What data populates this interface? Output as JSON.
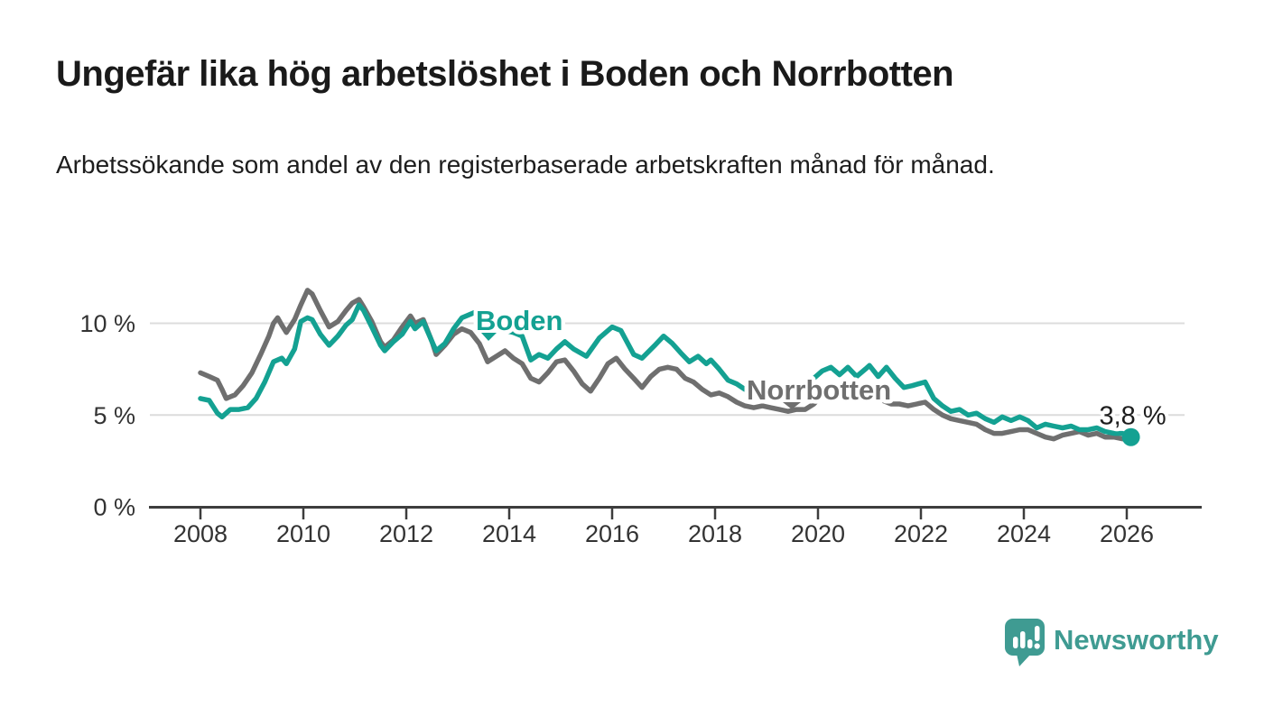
{
  "header": {
    "title": "Ungefär lika hög arbetslöshet i Boden och Norrbotten",
    "subtitle": "Arbetssökande som andel av den registerbaserade arbetskraften månad för månad."
  },
  "footer": {
    "brand": "Newsworthy"
  },
  "colors": {
    "boden": "#14a192",
    "norrbotten": "#6f6f6f",
    "grid": "#dcdcdc",
    "axis": "#3d3d3d",
    "tick_text": "#333333",
    "title_text": "#1a1a1a",
    "brand_teal": "#3f9b92"
  },
  "chart_data": {
    "type": "line",
    "title": "Ungefär lika hög arbetslöshet i Boden och Norrbotten",
    "subtitle": "Arbetssökande som andel av den registerbaserade arbetskraften månad för månad.",
    "xlabel": "",
    "ylabel": "",
    "unit": "%",
    "legend_position": "inline-labels",
    "grid": "horizontal",
    "x_axis": {
      "min": 2007.0,
      "max": 2027.4,
      "ticks": [
        2008,
        2010,
        2012,
        2014,
        2016,
        2018,
        2020,
        2022,
        2024,
        2026
      ]
    },
    "y_axis": {
      "min": 0,
      "max": 12.8,
      "ticks": [
        {
          "value": 0,
          "label": "0 %"
        },
        {
          "value": 5,
          "label": "5 %"
        },
        {
          "value": 10,
          "label": "10 %"
        }
      ],
      "gridlines": [
        5,
        10
      ]
    },
    "annotations": [
      {
        "text": "3,8 %",
        "series": "Boden",
        "position": "end",
        "value": 3.8
      }
    ],
    "series": [
      {
        "name": "Norrbotten",
        "color": "#6f6f6f",
        "points": [
          [
            2008.0,
            7.3
          ],
          [
            2008.17,
            7.1
          ],
          [
            2008.33,
            6.9
          ],
          [
            2008.42,
            6.4
          ],
          [
            2008.5,
            5.9
          ],
          [
            2008.67,
            6.1
          ],
          [
            2008.83,
            6.6
          ],
          [
            2009.0,
            7.3
          ],
          [
            2009.17,
            8.3
          ],
          [
            2009.33,
            9.3
          ],
          [
            2009.42,
            10.0
          ],
          [
            2009.5,
            10.3
          ],
          [
            2009.58,
            9.9
          ],
          [
            2009.67,
            9.5
          ],
          [
            2009.83,
            10.2
          ],
          [
            2009.95,
            11.0
          ],
          [
            2010.08,
            11.8
          ],
          [
            2010.17,
            11.6
          ],
          [
            2010.33,
            10.7
          ],
          [
            2010.5,
            9.8
          ],
          [
            2010.67,
            10.1
          ],
          [
            2010.83,
            10.7
          ],
          [
            2010.95,
            11.1
          ],
          [
            2011.08,
            11.3
          ],
          [
            2011.17,
            10.9
          ],
          [
            2011.33,
            10.1
          ],
          [
            2011.5,
            9.0
          ],
          [
            2011.58,
            8.7
          ],
          [
            2011.75,
            9.1
          ],
          [
            2011.92,
            9.8
          ],
          [
            2012.08,
            10.4
          ],
          [
            2012.17,
            10.0
          ],
          [
            2012.33,
            10.2
          ],
          [
            2012.5,
            9.0
          ],
          [
            2012.58,
            8.3
          ],
          [
            2012.75,
            8.8
          ],
          [
            2012.92,
            9.4
          ],
          [
            2013.08,
            9.7
          ],
          [
            2013.25,
            9.5
          ],
          [
            2013.42,
            8.9
          ],
          [
            2013.58,
            7.9
          ],
          [
            2013.75,
            8.2
          ],
          [
            2013.92,
            8.5
          ],
          [
            2014.08,
            8.1
          ],
          [
            2014.25,
            7.8
          ],
          [
            2014.42,
            7.0
          ],
          [
            2014.58,
            6.8
          ],
          [
            2014.75,
            7.3
          ],
          [
            2014.92,
            7.9
          ],
          [
            2015.08,
            8.0
          ],
          [
            2015.25,
            7.4
          ],
          [
            2015.42,
            6.7
          ],
          [
            2015.58,
            6.3
          ],
          [
            2015.75,
            7.0
          ],
          [
            2015.92,
            7.8
          ],
          [
            2016.08,
            8.1
          ],
          [
            2016.25,
            7.5
          ],
          [
            2016.42,
            7.0
          ],
          [
            2016.58,
            6.5
          ],
          [
            2016.75,
            7.1
          ],
          [
            2016.92,
            7.5
          ],
          [
            2017.08,
            7.6
          ],
          [
            2017.25,
            7.5
          ],
          [
            2017.42,
            7.0
          ],
          [
            2017.58,
            6.8
          ],
          [
            2017.75,
            6.4
          ],
          [
            2017.92,
            6.1
          ],
          [
            2018.08,
            6.2
          ],
          [
            2018.25,
            6.0
          ],
          [
            2018.42,
            5.7
          ],
          [
            2018.58,
            5.5
          ],
          [
            2018.75,
            5.4
          ],
          [
            2018.92,
            5.5
          ],
          [
            2019.08,
            5.4
          ],
          [
            2019.25,
            5.3
          ],
          [
            2019.42,
            5.2
          ],
          [
            2019.58,
            5.3
          ],
          [
            2019.75,
            5.3
          ],
          [
            2019.92,
            5.6
          ],
          [
            2020.08,
            6.1
          ],
          [
            2020.25,
            6.3
          ],
          [
            2020.42,
            6.2
          ],
          [
            2020.58,
            6.1
          ],
          [
            2020.75,
            6.0
          ],
          [
            2020.92,
            6.1
          ],
          [
            2021.08,
            6.0
          ],
          [
            2021.25,
            5.8
          ],
          [
            2021.42,
            5.6
          ],
          [
            2021.58,
            5.6
          ],
          [
            2021.75,
            5.5
          ],
          [
            2021.92,
            5.6
          ],
          [
            2022.08,
            5.7
          ],
          [
            2022.25,
            5.3
          ],
          [
            2022.42,
            5.0
          ],
          [
            2022.58,
            4.8
          ],
          [
            2022.75,
            4.7
          ],
          [
            2022.92,
            4.6
          ],
          [
            2023.08,
            4.5
          ],
          [
            2023.25,
            4.2
          ],
          [
            2023.42,
            4.0
          ],
          [
            2023.58,
            4.0
          ],
          [
            2023.75,
            4.1
          ],
          [
            2023.92,
            4.2
          ],
          [
            2024.08,
            4.2
          ],
          [
            2024.25,
            4.0
          ],
          [
            2024.42,
            3.8
          ],
          [
            2024.58,
            3.7
          ],
          [
            2024.75,
            3.9
          ],
          [
            2024.92,
            4.0
          ],
          [
            2025.08,
            4.1
          ],
          [
            2025.25,
            3.9
          ],
          [
            2025.42,
            4.0
          ],
          [
            2025.58,
            3.8
          ],
          [
            2025.75,
            3.8
          ],
          [
            2025.92,
            3.7
          ],
          [
            2026.08,
            3.8
          ]
        ]
      },
      {
        "name": "Boden",
        "color": "#14a192",
        "end_dot": true,
        "points": [
          [
            2008.0,
            5.9
          ],
          [
            2008.17,
            5.8
          ],
          [
            2008.33,
            5.1
          ],
          [
            2008.42,
            4.9
          ],
          [
            2008.58,
            5.3
          ],
          [
            2008.75,
            5.3
          ],
          [
            2008.92,
            5.4
          ],
          [
            2009.08,
            5.9
          ],
          [
            2009.25,
            6.8
          ],
          [
            2009.42,
            7.9
          ],
          [
            2009.58,
            8.1
          ],
          [
            2009.67,
            7.8
          ],
          [
            2009.83,
            8.6
          ],
          [
            2009.95,
            10.1
          ],
          [
            2010.08,
            10.3
          ],
          [
            2010.17,
            10.2
          ],
          [
            2010.33,
            9.4
          ],
          [
            2010.5,
            8.8
          ],
          [
            2010.67,
            9.3
          ],
          [
            2010.83,
            9.9
          ],
          [
            2010.95,
            10.2
          ],
          [
            2011.08,
            11.0
          ],
          [
            2011.17,
            10.7
          ],
          [
            2011.33,
            9.8
          ],
          [
            2011.5,
            8.8
          ],
          [
            2011.58,
            8.5
          ],
          [
            2011.75,
            9.0
          ],
          [
            2011.92,
            9.4
          ],
          [
            2012.08,
            10.1
          ],
          [
            2012.17,
            9.7
          ],
          [
            2012.33,
            10.1
          ],
          [
            2012.5,
            9.0
          ],
          [
            2012.58,
            8.5
          ],
          [
            2012.75,
            8.9
          ],
          [
            2012.92,
            9.7
          ],
          [
            2013.08,
            10.3
          ],
          [
            2013.25,
            10.5
          ],
          [
            2013.42,
            10.7
          ],
          [
            2013.58,
            10.3
          ],
          [
            2013.75,
            9.9
          ],
          [
            2013.92,
            9.6
          ],
          [
            2014.08,
            9.5
          ],
          [
            2014.25,
            9.3
          ],
          [
            2014.42,
            8.0
          ],
          [
            2014.58,
            8.3
          ],
          [
            2014.75,
            8.1
          ],
          [
            2014.92,
            8.6
          ],
          [
            2015.08,
            9.0
          ],
          [
            2015.25,
            8.6
          ],
          [
            2015.5,
            8.2
          ],
          [
            2015.75,
            9.2
          ],
          [
            2016.0,
            9.8
          ],
          [
            2016.17,
            9.6
          ],
          [
            2016.42,
            8.3
          ],
          [
            2016.58,
            8.1
          ],
          [
            2016.83,
            8.8
          ],
          [
            2017.0,
            9.3
          ],
          [
            2017.17,
            8.9
          ],
          [
            2017.33,
            8.4
          ],
          [
            2017.5,
            7.9
          ],
          [
            2017.67,
            8.2
          ],
          [
            2017.83,
            7.8
          ],
          [
            2017.92,
            8.0
          ],
          [
            2018.08,
            7.5
          ],
          [
            2018.25,
            6.9
          ],
          [
            2018.42,
            6.7
          ],
          [
            2018.58,
            6.4
          ],
          [
            2018.75,
            6.3
          ],
          [
            2018.92,
            6.0
          ],
          [
            2019.08,
            6.2
          ],
          [
            2019.25,
            6.4
          ],
          [
            2019.42,
            6.1
          ],
          [
            2019.58,
            6.3
          ],
          [
            2019.75,
            6.6
          ],
          [
            2019.92,
            7.0
          ],
          [
            2020.08,
            7.4
          ],
          [
            2020.25,
            7.6
          ],
          [
            2020.42,
            7.2
          ],
          [
            2020.58,
            7.6
          ],
          [
            2020.75,
            7.1
          ],
          [
            2020.92,
            7.5
          ],
          [
            2021.0,
            7.7
          ],
          [
            2021.17,
            7.1
          ],
          [
            2021.33,
            7.6
          ],
          [
            2021.5,
            7.0
          ],
          [
            2021.67,
            6.5
          ],
          [
            2021.83,
            6.6
          ],
          [
            2021.95,
            6.7
          ],
          [
            2022.08,
            6.8
          ],
          [
            2022.25,
            5.9
          ],
          [
            2022.42,
            5.5
          ],
          [
            2022.58,
            5.2
          ],
          [
            2022.75,
            5.3
          ],
          [
            2022.92,
            5.0
          ],
          [
            2023.08,
            5.1
          ],
          [
            2023.25,
            4.8
          ],
          [
            2023.42,
            4.6
          ],
          [
            2023.58,
            4.9
          ],
          [
            2023.75,
            4.7
          ],
          [
            2023.92,
            4.9
          ],
          [
            2024.08,
            4.7
          ],
          [
            2024.25,
            4.3
          ],
          [
            2024.42,
            4.5
          ],
          [
            2024.58,
            4.4
          ],
          [
            2024.75,
            4.3
          ],
          [
            2024.92,
            4.4
          ],
          [
            2025.08,
            4.2
          ],
          [
            2025.25,
            4.2
          ],
          [
            2025.42,
            4.3
          ],
          [
            2025.58,
            4.1
          ],
          [
            2025.75,
            4.0
          ],
          [
            2025.92,
            4.0
          ],
          [
            2026.08,
            3.8
          ]
        ]
      }
    ]
  }
}
